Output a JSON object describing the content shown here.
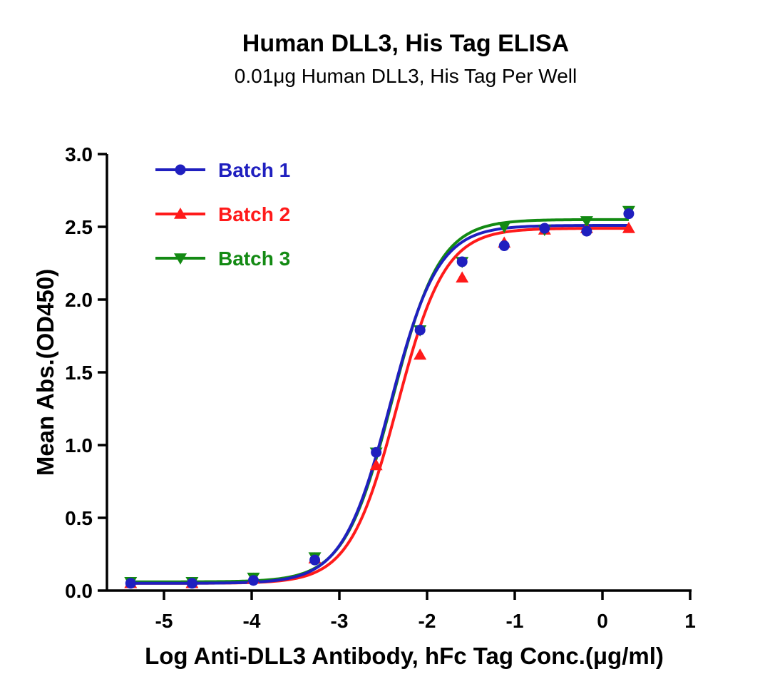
{
  "chart_data": {
    "type": "line",
    "title": "Human DLL3, His Tag ELISA",
    "subtitle": "0.01μg Human DLL3, His Tag Per Well",
    "xlabel": "Log Anti-DLL3 Antibody, hFc Tag Conc.(μg/ml)",
    "ylabel": "Mean Abs.(OD450)",
    "xlim": [
      -5.5,
      1
    ],
    "ylim": [
      0,
      3
    ],
    "xticks": [
      -5,
      -4,
      -3,
      -2,
      -1,
      0,
      1
    ],
    "yticks": [
      0.0,
      0.5,
      1.0,
      1.5,
      2.0,
      2.5,
      3.0
    ],
    "xtick_labels": [
      "-5",
      "-4",
      "-3",
      "-2",
      "-1",
      "0",
      "1"
    ],
    "ytick_labels": [
      "0.0",
      "0.5",
      "1.0",
      "1.5",
      "2.0",
      "2.5",
      "3.0"
    ],
    "grid": false,
    "legend_position": "top-left",
    "x": [
      -5.38,
      -4.68,
      -3.98,
      -3.28,
      -2.58,
      -2.08,
      -1.6,
      -1.12,
      -0.66,
      -0.18,
      0.3
    ],
    "series": [
      {
        "name": "Batch 1",
        "color": "#1f1fbf",
        "marker": "circle",
        "values": [
          0.05,
          0.05,
          0.07,
          0.21,
          0.95,
          1.79,
          2.26,
          2.37,
          2.49,
          2.47,
          2.59
        ],
        "fit": {
          "bottom": 0.05,
          "top": 2.51,
          "logec50": -2.42,
          "hill": 1.6
        }
      },
      {
        "name": "Batch 2",
        "color": "#ff1a1a",
        "marker": "triangle-up",
        "values": [
          0.05,
          0.05,
          0.08,
          0.22,
          0.86,
          1.62,
          2.15,
          2.39,
          2.48,
          2.49,
          2.49
        ],
        "fit": {
          "bottom": 0.05,
          "top": 2.49,
          "logec50": -2.34,
          "hill": 1.6
        }
      },
      {
        "name": "Batch 3",
        "color": "#138a13",
        "marker": "triangle-down",
        "values": [
          0.06,
          0.06,
          0.09,
          0.23,
          0.95,
          1.79,
          2.26,
          2.5,
          2.48,
          2.54,
          2.61
        ],
        "fit": {
          "bottom": 0.06,
          "top": 2.55,
          "logec50": -2.4,
          "hill": 1.6
        }
      }
    ]
  }
}
